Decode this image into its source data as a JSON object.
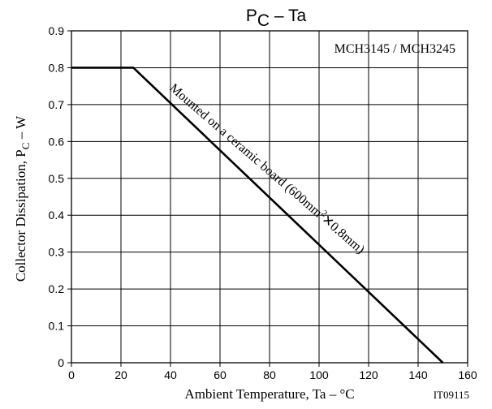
{
  "chart_data": {
    "type": "line",
    "title": {
      "main": "P",
      "sub": "C",
      "rest": " – Ta"
    },
    "xlabel": "Ambient Temperature, Ta  –  °C",
    "ylabel": {
      "main": "Collector Dissipation, P",
      "sub": "C",
      "rest": "  –  W"
    },
    "xlim": [
      0,
      160
    ],
    "ylim": [
      0,
      0.9
    ],
    "xticks": [
      "0",
      "20",
      "40",
      "60",
      "80",
      "100",
      "120",
      "140",
      "160"
    ],
    "yticks": [
      "0",
      "0.1",
      "0.2",
      "0.3",
      "0.4",
      "0.5",
      "0.6",
      "0.7",
      "0.8",
      "0.9"
    ],
    "grid": true,
    "series": [
      {
        "name": "",
        "x": [
          0,
          25,
          150
        ],
        "y": [
          0.8,
          0.8,
          0
        ]
      }
    ],
    "annotations": {
      "part_numbers": "MCH3145 / MCH3245",
      "curve_label": {
        "main": "Mounted on a ceramic board (600mm",
        "sup": "2",
        "rest": "✕0.8mm)"
      },
      "figure_code": "IT09115"
    }
  }
}
